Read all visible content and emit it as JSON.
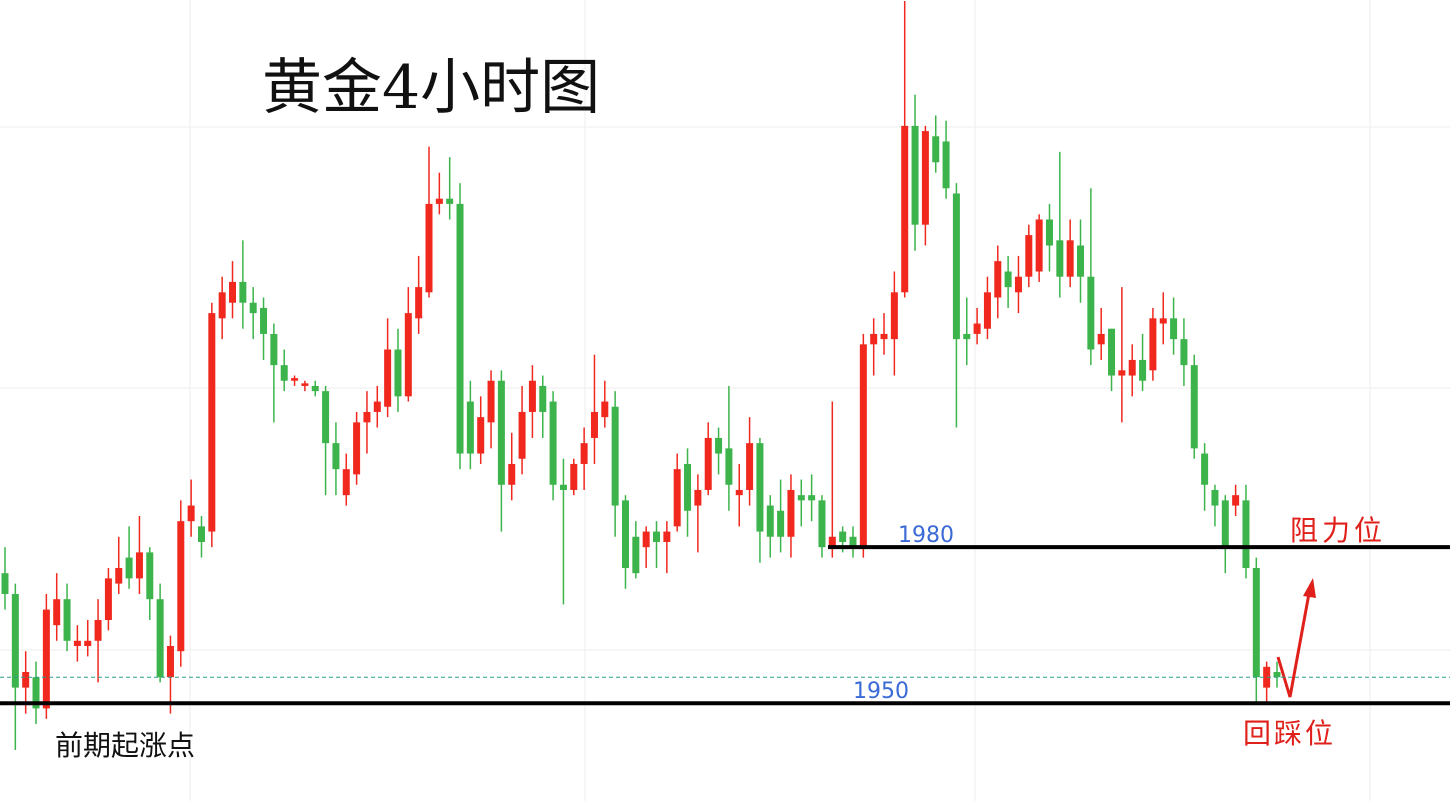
{
  "chart_data": {
    "type": "candlestick",
    "title": "黄金4小时图",
    "ylim": [
      1931.2,
      2085.2
    ],
    "up_color": "#f0281e",
    "down_color": "#3cb44b",
    "levels": [
      1980,
      1950
    ],
    "annotations": [
      "前期起涨点",
      "阻力位",
      "回踩位"
    ],
    "candles": [
      [
        1975,
        1980,
        1968,
        1971
      ],
      [
        1971,
        1973,
        1941,
        1953
      ],
      [
        1953,
        1960,
        1948,
        1956
      ],
      [
        1955,
        1958,
        1946,
        1949
      ],
      [
        1949,
        1971,
        1947,
        1968
      ],
      [
        1965,
        1975,
        1962,
        1970
      ],
      [
        1970,
        1973,
        1960,
        1962
      ],
      [
        1961,
        1965,
        1958,
        1962
      ],
      [
        1961,
        1966,
        1959,
        1962
      ],
      [
        1962,
        1970,
        1954,
        1966
      ],
      [
        1966,
        1976,
        1964,
        1974
      ],
      [
        1973,
        1982,
        1971,
        1976
      ],
      [
        1978,
        1984,
        1972,
        1974
      ],
      [
        1974,
        1986,
        1971,
        1979
      ],
      [
        1979,
        1980,
        1966,
        1970
      ],
      [
        1970,
        1973,
        1954,
        1955
      ],
      [
        1955,
        1963,
        1948,
        1961
      ],
      [
        1960,
        1989,
        1957,
        1985
      ],
      [
        1985,
        1993,
        1982,
        1988
      ],
      [
        1984,
        1986,
        1978,
        1981
      ],
      [
        1983,
        2027,
        1980,
        2025
      ],
      [
        2024,
        2032,
        2020,
        2029
      ],
      [
        2027,
        2035,
        2024,
        2031
      ],
      [
        2031,
        2039,
        2022,
        2027
      ],
      [
        2027,
        2030,
        2020,
        2025
      ],
      [
        2026,
        2028,
        2016,
        2021
      ],
      [
        2021,
        2023,
        2004,
        2015
      ],
      [
        2015,
        2018,
        2010,
        2012
      ],
      [
        2012,
        2013,
        2011,
        2012.5
      ],
      [
        2011,
        2012,
        2010,
        2011.5
      ],
      [
        2011,
        2012,
        2009,
        2010
      ],
      [
        2010,
        2011,
        1990,
        2000
      ],
      [
        2000,
        2004,
        1990,
        1995
      ],
      [
        1990,
        1998,
        1988,
        1995
      ],
      [
        1994,
        2006,
        1992,
        2004
      ],
      [
        2004,
        2010,
        1998,
        2006
      ],
      [
        2006,
        2011,
        2003,
        2008
      ],
      [
        2007,
        2024,
        2005,
        2018
      ],
      [
        2018,
        2022,
        2006,
        2009
      ],
      [
        2009,
        2030,
        2008,
        2025
      ],
      [
        2024,
        2036,
        2021,
        2030
      ],
      [
        2029,
        2057,
        2028,
        2046
      ],
      [
        2046,
        2052,
        2044,
        2047
      ],
      [
        2047,
        2055,
        2043,
        2046
      ],
      [
        2046,
        2050,
        1995,
        1998
      ],
      [
        2008,
        2012,
        1995,
        1998
      ],
      [
        1998,
        2009,
        1996,
        2005
      ],
      [
        2004,
        2014,
        1999,
        2012
      ],
      [
        2012,
        2014,
        1983,
        1992
      ],
      [
        1992,
        2002,
        1989,
        1996
      ],
      [
        1997,
        2011,
        1994,
        2006
      ],
      [
        2006,
        2015,
        2001,
        2012
      ],
      [
        2011,
        2013,
        2001,
        2006
      ],
      [
        2008,
        2010,
        1989,
        1992
      ],
      [
        1992,
        1997,
        1969,
        1991
      ],
      [
        1991,
        1997,
        1990,
        1996
      ],
      [
        1996,
        2003,
        1991,
        2000
      ],
      [
        2001,
        2017,
        1996,
        2006
      ],
      [
        2005,
        2012,
        2003,
        2008
      ],
      [
        2007,
        2010,
        1982,
        1988
      ],
      [
        1989,
        1990,
        1972,
        1976
      ],
      [
        1982,
        1985,
        1974,
        1975
      ],
      [
        1980,
        1984,
        1976,
        1983
      ],
      [
        1983,
        1985,
        1976,
        1981
      ],
      [
        1981,
        1985,
        1975,
        1983
      ],
      [
        1984,
        1998,
        1983,
        1995
      ],
      [
        1996,
        1999,
        1982,
        1987
      ],
      [
        1988,
        1994,
        1979,
        1991
      ],
      [
        1991,
        2004,
        1990,
        2001
      ],
      [
        2001,
        2003,
        1994,
        1998
      ],
      [
        1999,
        2011,
        1987,
        1992
      ],
      [
        1990,
        1996,
        1984,
        1991
      ],
      [
        1991,
        2005,
        1988,
        2000
      ],
      [
        2000,
        2001,
        1977,
        1983
      ],
      [
        1988,
        1990,
        1978,
        1982
      ],
      [
        1987,
        1993,
        1979,
        1982
      ],
      [
        1982,
        1994,
        1978,
        1991
      ],
      [
        1990,
        1993,
        1984,
        1989
      ],
      [
        1990,
        1994,
        1985,
        1989
      ],
      [
        1989,
        1990,
        1978,
        1980
      ],
      [
        1980,
        2008,
        1978,
        1982
      ],
      [
        1983,
        1984,
        1979,
        1981
      ],
      [
        1982,
        1984,
        1978,
        1980
      ],
      [
        1980,
        2021,
        1978,
        2019
      ],
      [
        2019,
        2024,
        2013,
        2021
      ],
      [
        2020,
        2025,
        2017,
        2021
      ],
      [
        2020,
        2033,
        2013,
        2029
      ],
      [
        2029,
        2085,
        2028,
        2061
      ],
      [
        2061,
        2067,
        2037,
        2042
      ],
      [
        2042,
        2061,
        2038,
        2060
      ],
      [
        2059,
        2063,
        2052,
        2054
      ],
      [
        2058,
        2062,
        2047,
        2049
      ],
      [
        2048,
        2050,
        2003,
        2020
      ],
      [
        2021,
        2028,
        2015,
        2020
      ],
      [
        2021,
        2026,
        2019,
        2023
      ],
      [
        2022,
        2032,
        2020,
        2029
      ],
      [
        2028,
        2038,
        2024,
        2035
      ],
      [
        2033,
        2036,
        2026,
        2030
      ],
      [
        2029,
        2036,
        2025,
        2032
      ],
      [
        2032,
        2042,
        2030,
        2040
      ],
      [
        2033,
        2044,
        2031,
        2043
      ],
      [
        2043,
        2046,
        2033,
        2038
      ],
      [
        2039,
        2056,
        2028,
        2032
      ],
      [
        2032,
        2043,
        2030,
        2039
      ],
      [
        2038,
        2043,
        2027,
        2032
      ],
      [
        2032,
        2049,
        2015,
        2018
      ],
      [
        2019,
        2026,
        2016,
        2021
      ],
      [
        2022,
        2022,
        2010,
        2013
      ],
      [
        2013,
        2030,
        2004,
        2014
      ],
      [
        2013,
        2019,
        2009,
        2016
      ],
      [
        2016,
        2021,
        2010,
        2012
      ],
      [
        2014,
        2026,
        2012,
        2024
      ],
      [
        2023,
        2029,
        2019,
        2024
      ],
      [
        2024,
        2028,
        2017,
        2020
      ],
      [
        2020,
        2024,
        2011,
        2015
      ],
      [
        2015,
        2017,
        1997,
        1999
      ],
      [
        1998,
        2000,
        1987,
        1992
      ],
      [
        1991,
        1992,
        1984,
        1988
      ],
      [
        1989,
        1990,
        1975,
        1980
      ],
      [
        1988,
        1992,
        1986,
        1990
      ],
      [
        1989,
        1992,
        1974,
        1976
      ],
      [
        1976,
        1978,
        1950,
        1955
      ],
      [
        1953,
        1958,
        1950,
        1957
      ],
      [
        1956,
        1958,
        1953,
        1955
      ]
    ]
  }
}
